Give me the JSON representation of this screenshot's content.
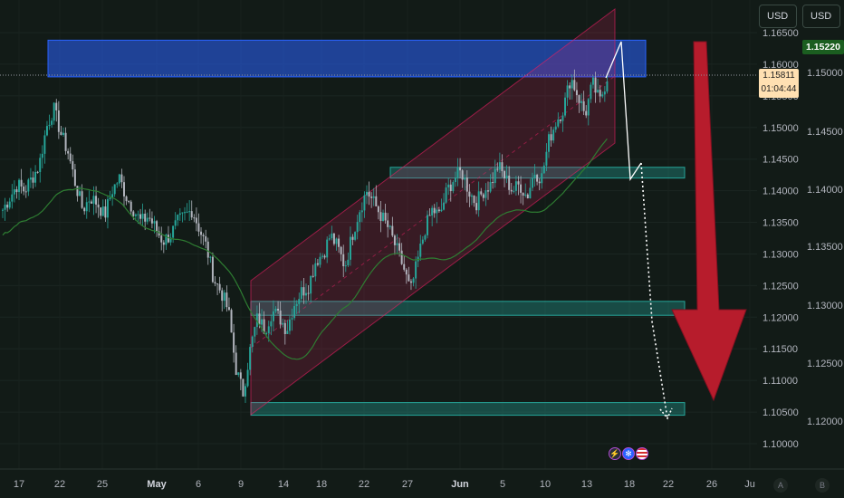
{
  "currency_buttons": [
    "USD",
    "USD"
  ],
  "current_price": {
    "value": "1.15811",
    "countdown": "01:04:44"
  },
  "right_scale_last": "1.15220",
  "colors": {
    "up": "#26a69a",
    "down": "#b2b5be",
    "ma": "#2e7d32",
    "resistance_zone": "#2962ff",
    "support_zone": "#26a69a",
    "channel": "#e91e63",
    "arrow": "#b71c2c"
  },
  "axis_bottom_letters": [
    "A",
    "B"
  ],
  "event_icons": [
    "flash-icon",
    "crypto-icon",
    "us-flag-icon"
  ],
  "chart_data": {
    "type": "candlestick",
    "x_ticks": [
      "17",
      "22",
      "25",
      "May",
      "6",
      "9",
      "14",
      "18",
      "22",
      "27",
      "Jun",
      "5",
      "10",
      "13",
      "18",
      "22",
      "26",
      "Ju"
    ],
    "y_ticks_left": [
      "1.16500",
      "1.16000",
      "1.15500",
      "1.15000",
      "1.14500",
      "1.14000",
      "1.13500",
      "1.13000",
      "1.12500",
      "1.12000",
      "1.11500",
      "1.11000",
      "1.10500",
      "1.10000"
    ],
    "y_ticks_right": [
      "1.15000",
      "1.14500",
      "1.14000",
      "1.13500",
      "1.13000",
      "1.12500",
      "1.12000"
    ],
    "ylim_left": [
      1.0975,
      1.1675
    ],
    "zones": [
      {
        "name": "resistance",
        "from": 1.158,
        "to": 1.1638
      },
      {
        "name": "support-1",
        "from": 1.142,
        "to": 1.1437
      },
      {
        "name": "support-2",
        "from": 1.1203,
        "to": 1.1225
      },
      {
        "name": "support-3",
        "from": 1.1045,
        "to": 1.1065
      }
    ],
    "price_path": [
      1.137,
      1.139,
      1.141,
      1.14,
      1.142,
      1.144,
      1.15,
      1.153,
      1.149,
      1.146,
      1.141,
      1.137,
      1.139,
      1.138,
      1.136,
      1.14,
      1.142,
      1.139,
      1.137,
      1.135,
      1.136,
      1.134,
      1.132,
      1.133,
      1.135,
      1.136,
      1.137,
      1.134,
      1.131,
      1.126,
      1.124,
      1.121,
      1.112,
      1.108,
      1.115,
      1.12,
      1.118,
      1.121,
      1.12,
      1.118,
      1.122,
      1.124,
      1.125,
      1.129,
      1.13,
      1.133,
      1.131,
      1.128,
      1.133,
      1.137,
      1.14,
      1.138,
      1.136,
      1.134,
      1.131,
      1.128,
      1.124,
      1.129,
      1.134,
      1.137,
      1.136,
      1.14,
      1.142,
      1.143,
      1.14,
      1.138,
      1.14,
      1.141,
      1.144,
      1.142,
      1.14,
      1.141,
      1.139,
      1.143,
      1.142,
      1.148,
      1.151,
      1.153,
      1.158,
      1.155,
      1.152,
      1.157,
      1.154,
      1.158
    ]
  }
}
